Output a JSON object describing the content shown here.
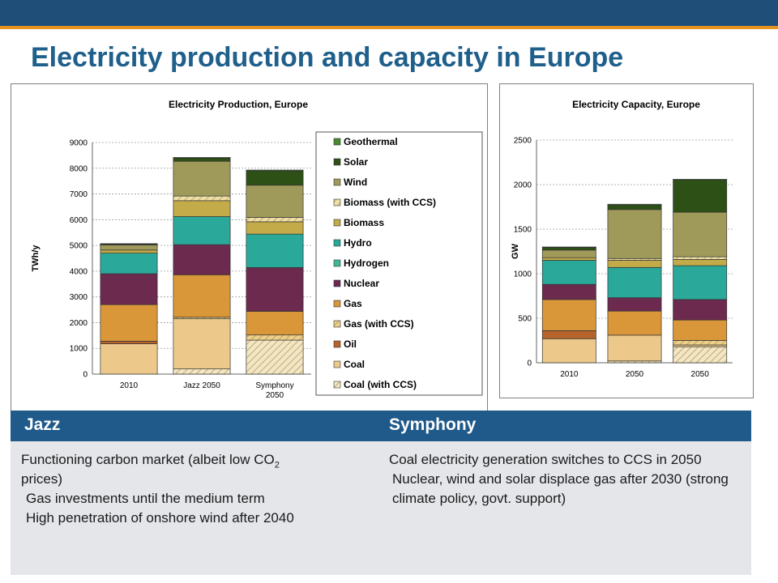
{
  "page": {
    "title": "Electricity production and capacity in Europe"
  },
  "chart_data": [
    {
      "type": "bar",
      "stacked": true,
      "title": "Electricity Production, Europe",
      "ylabel": "TWh/y",
      "xlabel": "",
      "ylim": [
        0,
        9000
      ],
      "yticks": [
        0,
        1000,
        2000,
        3000,
        4000,
        5000,
        6000,
        7000,
        8000,
        9000
      ],
      "grid": true,
      "legend_position": "right",
      "categories": [
        "2010",
        "Jazz 2050",
        "Symphony 2050"
      ],
      "series": [
        {
          "name": "Coal (with CCS)",
          "color": "#f2e6c4",
          "hatched": true,
          "values": [
            0,
            200,
            1320
          ]
        },
        {
          "name": "Coal",
          "color": "#ecc98a",
          "values": [
            1180,
            1950,
            0
          ]
        },
        {
          "name": "Oil",
          "color": "#b5642b",
          "values": [
            100,
            0,
            0
          ]
        },
        {
          "name": "Gas (with CCS)",
          "color": "#eccf8a",
          "hatched": true,
          "values": [
            0,
            60,
            200
          ]
        },
        {
          "name": "Gas",
          "color": "#d9973a",
          "values": [
            1420,
            1650,
            920
          ]
        },
        {
          "name": "Nuclear",
          "color": "#6b2a4e",
          "values": [
            1200,
            1170,
            1700
          ]
        },
        {
          "name": "Hydrogen",
          "color": "#40b897",
          "values": [
            0,
            0,
            0
          ]
        },
        {
          "name": "Hydro",
          "color": "#2aa89a",
          "values": [
            800,
            1090,
            1300
          ]
        },
        {
          "name": "Biomass",
          "color": "#c2ab48",
          "values": [
            120,
            620,
            480
          ]
        },
        {
          "name": "Biomass (with CCS)",
          "color": "#efe0a8",
          "hatched": true,
          "values": [
            0,
            180,
            170
          ]
        },
        {
          "name": "Wind",
          "color": "#a09a5a",
          "values": [
            200,
            1350,
            1250
          ]
        },
        {
          "name": "Solar",
          "color": "#2d5016",
          "values": [
            30,
            120,
            560
          ]
        },
        {
          "name": "Geothermal",
          "color": "#4a8a30",
          "values": [
            20,
            30,
            30
          ]
        }
      ]
    },
    {
      "type": "bar",
      "stacked": true,
      "title": "Electricity Capacity, Europe",
      "ylabel": "GW",
      "xlabel": "",
      "ylim": [
        0,
        2500
      ],
      "yticks": [
        0,
        500,
        1000,
        1500,
        2000,
        2500
      ],
      "grid": true,
      "categories": [
        "2010",
        "2050",
        "2050"
      ],
      "series": [
        {
          "name": "Coal (with CCS)",
          "color": "#f2e6c4",
          "hatched": true,
          "values": [
            0,
            20,
            180
          ]
        },
        {
          "name": "Coal",
          "color": "#ecc98a",
          "values": [
            270,
            290,
            20
          ]
        },
        {
          "name": "Oil",
          "color": "#b5642b",
          "values": [
            90,
            0,
            0
          ]
        },
        {
          "name": "Gas (with CCS)",
          "color": "#eccf8a",
          "hatched": true,
          "values": [
            0,
            0,
            50
          ]
        },
        {
          "name": "Gas",
          "color": "#d9973a",
          "values": [
            350,
            270,
            230
          ]
        },
        {
          "name": "Nuclear",
          "color": "#6b2a4e",
          "values": [
            170,
            150,
            230
          ]
        },
        {
          "name": "Hydrogen",
          "color": "#40b897",
          "values": [
            0,
            0,
            0
          ]
        },
        {
          "name": "Hydro",
          "color": "#2aa89a",
          "values": [
            270,
            340,
            380
          ]
        },
        {
          "name": "Biomass",
          "color": "#c2ab48",
          "values": [
            30,
            80,
            70
          ]
        },
        {
          "name": "Biomass (with CCS)",
          "color": "#efe0a8",
          "hatched": true,
          "values": [
            0,
            20,
            30
          ]
        },
        {
          "name": "Wind",
          "color": "#a09a5a",
          "values": [
            85,
            550,
            500
          ]
        },
        {
          "name": "Solar",
          "color": "#2d5016",
          "values": [
            30,
            50,
            360
          ]
        },
        {
          "name": "Geothermal",
          "color": "#4a8a30",
          "values": [
            5,
            10,
            10
          ]
        }
      ]
    }
  ],
  "table": {
    "jazz_header": "Jazz",
    "symphony_header": "Symphony",
    "jazz_line1_a": "Functioning carbon market (albeit low CO",
    "jazz_line1_sub": "2",
    "jazz_line1_b": "prices)",
    "jazz_line2": "Gas investments until the medium term",
    "jazz_line3": "High penetration of onshore wind after 2040",
    "symphony_line1": "Coal electricity generation switches to CCS in 2050",
    "symphony_line2": "Nuclear, wind and solar displace gas after 2030 (strong climate policy, govt. support)"
  }
}
